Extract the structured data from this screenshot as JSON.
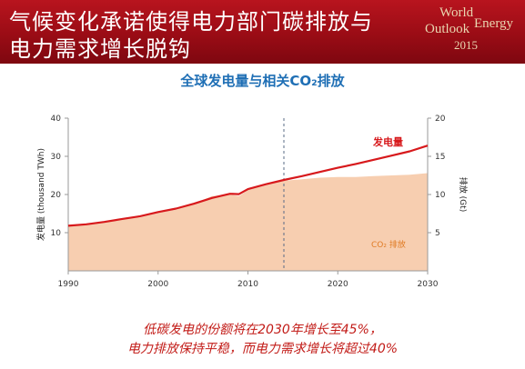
{
  "header": {
    "title_line1": "气候变化承诺使得电力部门碳排放与",
    "title_line2": "电力需求增长脱钩",
    "brand_line1": "World",
    "brand_line2": "Outlook",
    "brand_line2b": "Energy",
    "brand_year": "2015"
  },
  "chart_data": {
    "type": "area",
    "title": "全球发电量与相关CO₂排放",
    "xlabel": "",
    "ylabel_left": "发电量 (thousand TWh)",
    "ylabel_right": "排放 (Gt)",
    "xlim": [
      1990,
      2030
    ],
    "ylim_left": [
      0,
      40
    ],
    "ylim_right": [
      0,
      20
    ],
    "x_ticks": [
      "1990",
      "2000",
      "2010",
      "2020",
      "2030"
    ],
    "y_ticks_left": [
      "10",
      "20",
      "30",
      "40"
    ],
    "y_ticks_right": [
      "5",
      "10",
      "15",
      "20"
    ],
    "projection_start": 2014,
    "series": [
      {
        "name": "发电量",
        "axis": "left",
        "color": "#d7191c",
        "x": [
          1990,
          1992,
          1994,
          1996,
          1998,
          2000,
          2002,
          2004,
          2006,
          2008,
          2009,
          2010,
          2012,
          2014,
          2016,
          2018,
          2020,
          2022,
          2024,
          2026,
          2028,
          2030
        ],
        "values": [
          11.8,
          12.2,
          12.8,
          13.6,
          14.3,
          15.4,
          16.3,
          17.6,
          19.1,
          20.2,
          20.1,
          21.4,
          22.7,
          23.8,
          24.8,
          25.9,
          27.0,
          28.0,
          29.1,
          30.2,
          31.3,
          32.8
        ]
      },
      {
        "name": "CO₂ 排放",
        "axis": "right",
        "color": "#f7ceb0",
        "x": [
          1990,
          1992,
          1994,
          1996,
          1998,
          2000,
          2002,
          2004,
          2006,
          2008,
          2009,
          2010,
          2012,
          2014,
          2016,
          2018,
          2020,
          2022,
          2024,
          2026,
          2028,
          2030
        ],
        "values": [
          6.0,
          6.2,
          6.4,
          6.8,
          7.0,
          7.6,
          8.0,
          8.8,
          9.8,
          10.0,
          9.8,
          10.6,
          11.2,
          11.8,
          12.0,
          12.2,
          12.3,
          12.3,
          12.4,
          12.5,
          12.6,
          12.8
        ]
      }
    ],
    "labels": {
      "generation": "发电量",
      "co2": "CO₂ 排放"
    }
  },
  "footer": {
    "note_line1": "低碳发电的份额将在2030年增长至45%，",
    "note_line2": "电力排放保持平稳，而电力需求增长将超过40%"
  }
}
